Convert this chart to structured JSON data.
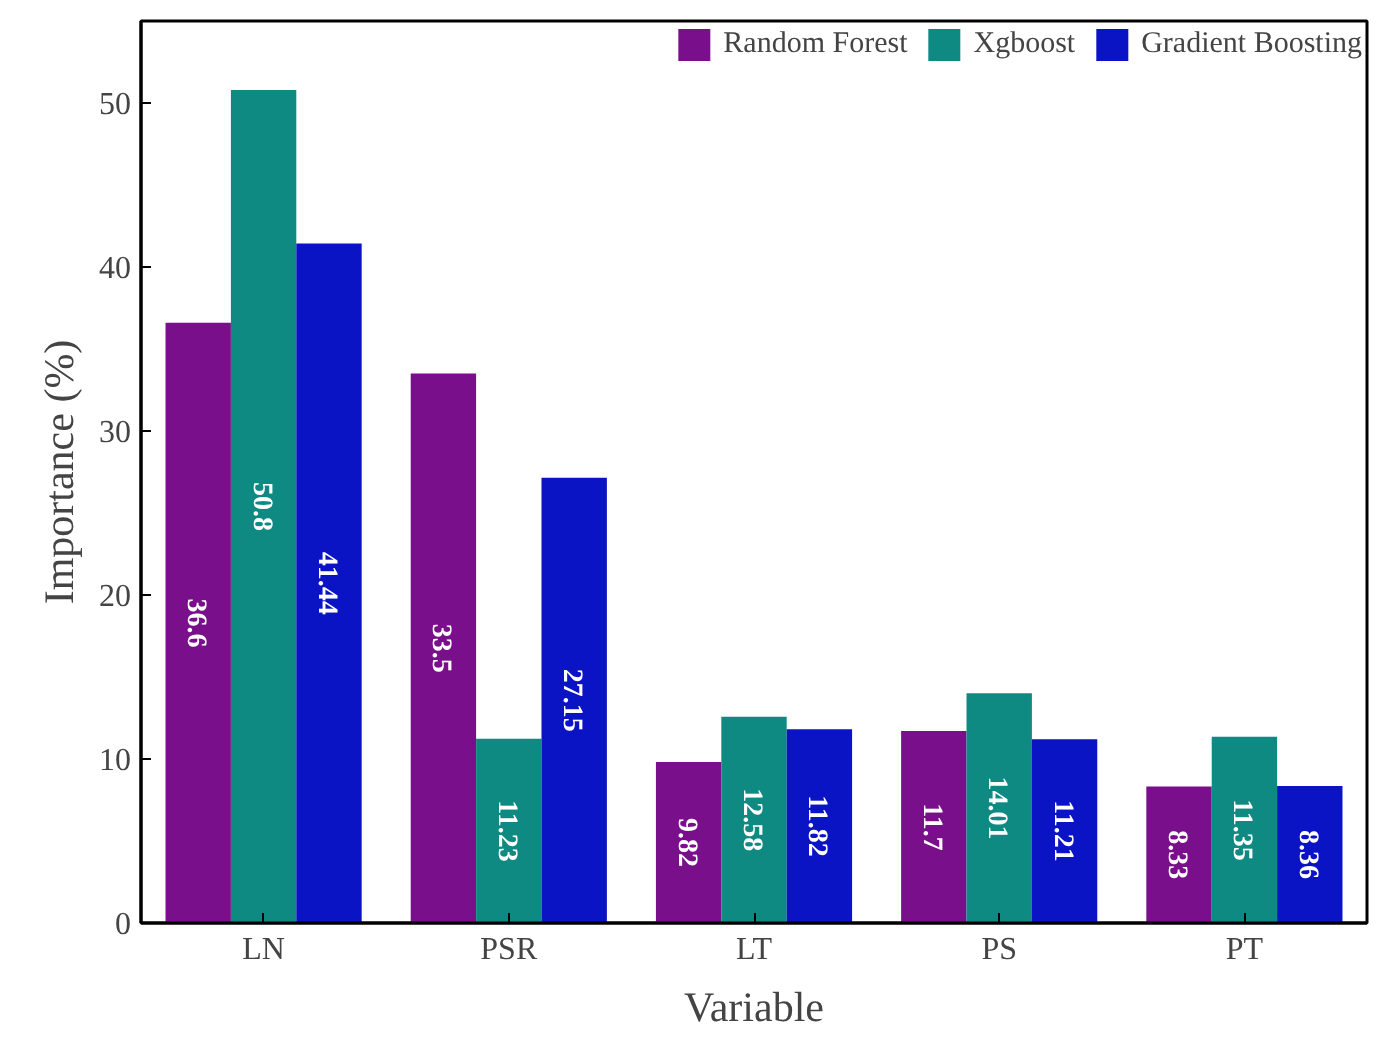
{
  "chart_data": {
    "type": "bar",
    "xlabel": "Variable",
    "ylabel": "Importance (%)",
    "categories": [
      "LN",
      "PSR",
      "LT",
      "PS",
      "PT"
    ],
    "series": [
      {
        "name": "Random Forest",
        "color": "#7a0f8c",
        "values": [
          36.6,
          33.5,
          9.82,
          11.7,
          8.33
        ]
      },
      {
        "name": "Xgboost",
        "color": "#0e8a82",
        "values": [
          50.8,
          11.23,
          12.58,
          14.01,
          11.35
        ]
      },
      {
        "name": "Gradient Boosting",
        "color": "#0a14c4",
        "values": [
          41.44,
          27.15,
          11.82,
          11.21,
          8.36
        ]
      }
    ],
    "ylim": [
      0,
      55
    ],
    "yticks": [
      0,
      10,
      20,
      30,
      40,
      50
    ],
    "grid": false,
    "legend": "top right",
    "data_labels": true
  }
}
